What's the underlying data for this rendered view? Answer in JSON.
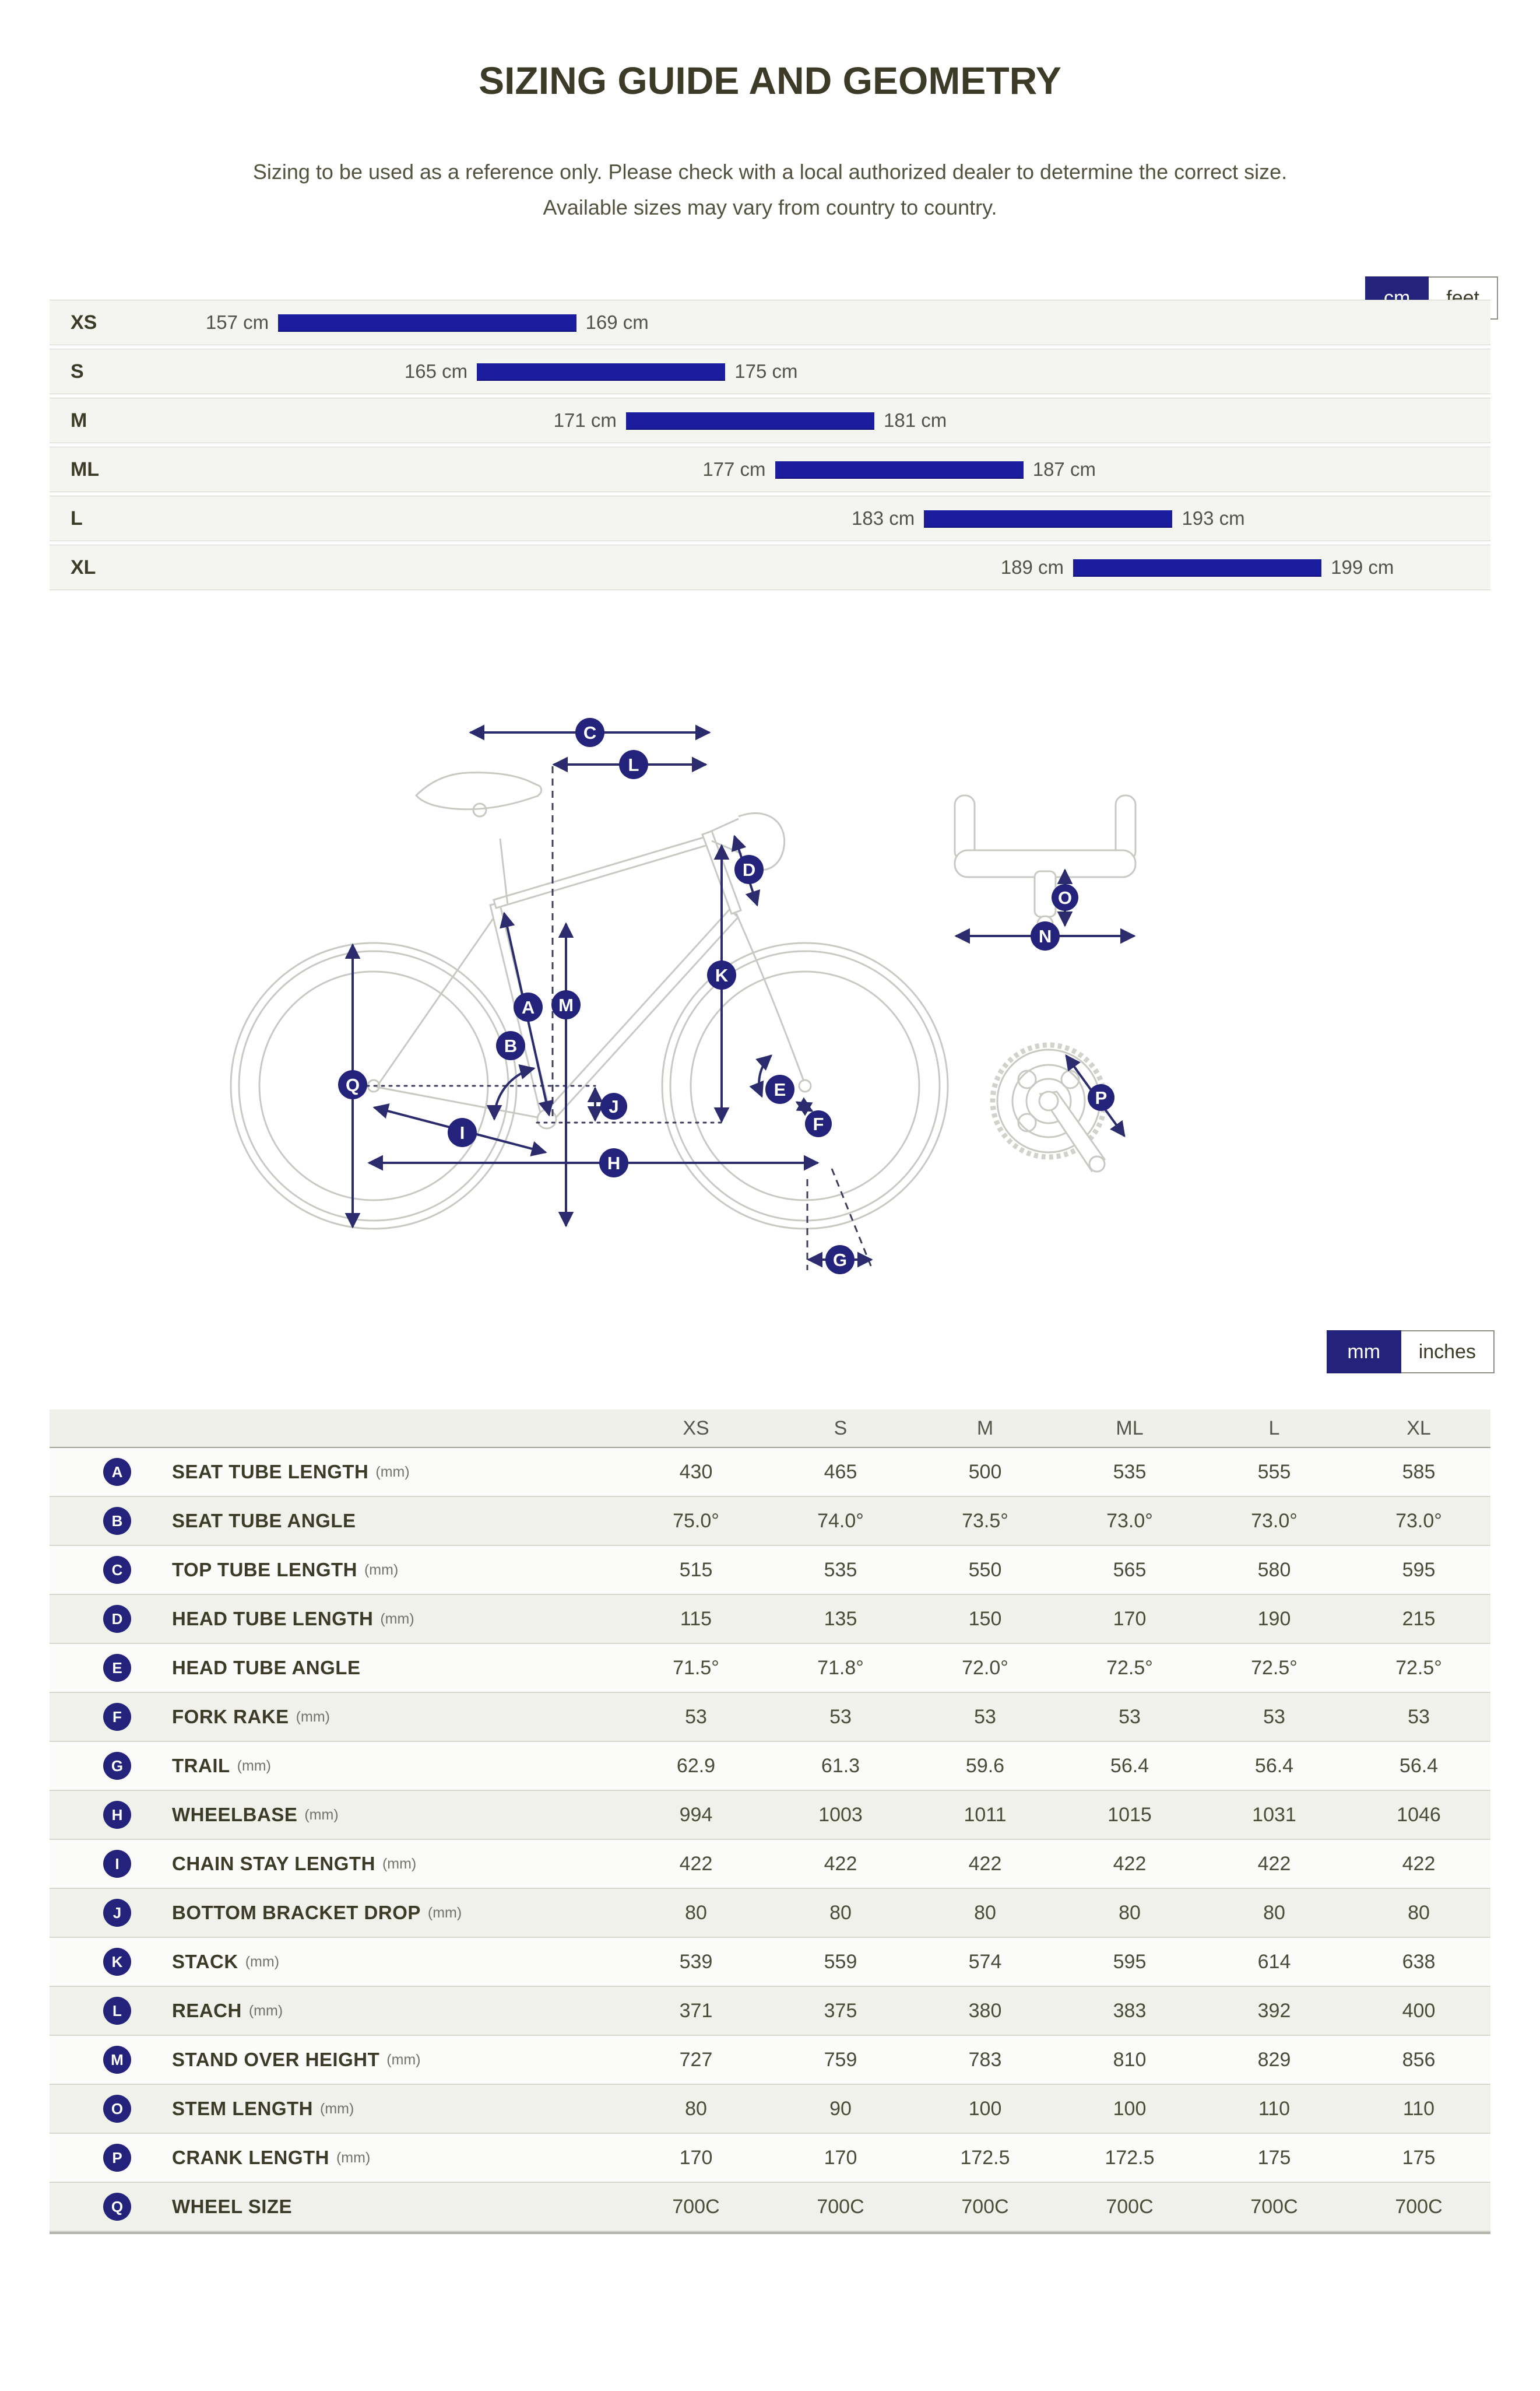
{
  "colors": {
    "accent": "#23237b",
    "bar_blue": "#1c1c9e",
    "title_ink": "#3b3b28"
  },
  "header": {
    "title": "SIZING GUIDE AND GEOMETRY",
    "subtitle_line1": "Sizing to be used as a reference only. Please check with a local authorized dealer to determine the correct size.",
    "subtitle_line2": "Available sizes may vary from country to country."
  },
  "toggles": {
    "height_units": {
      "active": "cm",
      "inactive": "feet"
    },
    "table_units": {
      "active": "mm",
      "inactive": "inches"
    }
  },
  "size_chart": {
    "scale_min_cm": 147.8,
    "scale_max_cm": 205.8,
    "rows": [
      {
        "size": "XS",
        "start": 157,
        "end": 169,
        "start_label": "157 cm",
        "end_label": "169 cm"
      },
      {
        "size": "S",
        "start": 165,
        "end": 175,
        "start_label": "165 cm",
        "end_label": "175 cm"
      },
      {
        "size": "M",
        "start": 171,
        "end": 181,
        "start_label": "171 cm",
        "end_label": "181 cm"
      },
      {
        "size": "ML",
        "start": 177,
        "end": 187,
        "start_label": "177 cm",
        "end_label": "187 cm"
      },
      {
        "size": "L",
        "start": 183,
        "end": 193,
        "start_label": "183 cm",
        "end_label": "193 cm"
      },
      {
        "size": "XL",
        "start": 189,
        "end": 199,
        "start_label": "189 cm",
        "end_label": "199 cm"
      }
    ]
  },
  "diagram": {
    "markers": {
      "A": "A",
      "B": "B",
      "C": "C",
      "D": "D",
      "E": "E",
      "F": "F",
      "G": "G",
      "H": "H",
      "I": "I",
      "J": "J",
      "K": "K",
      "L": "L",
      "M": "M",
      "N": "N",
      "O": "O",
      "P": "P",
      "Q": "Q"
    }
  },
  "geometry_table": {
    "columns": [
      "XS",
      "S",
      "M",
      "ML",
      "L",
      "XL"
    ],
    "rows": [
      {
        "letter": "A",
        "name": "SEAT TUBE LENGTH",
        "unit": "(mm)",
        "values": [
          "430",
          "465",
          "500",
          "535",
          "555",
          "585"
        ]
      },
      {
        "letter": "B",
        "name": "SEAT TUBE ANGLE",
        "unit": "",
        "values": [
          "75.0°",
          "74.0°",
          "73.5°",
          "73.0°",
          "73.0°",
          "73.0°"
        ]
      },
      {
        "letter": "C",
        "name": "TOP TUBE LENGTH",
        "unit": "(mm)",
        "values": [
          "515",
          "535",
          "550",
          "565",
          "580",
          "595"
        ]
      },
      {
        "letter": "D",
        "name": "HEAD TUBE LENGTH",
        "unit": "(mm)",
        "values": [
          "115",
          "135",
          "150",
          "170",
          "190",
          "215"
        ]
      },
      {
        "letter": "E",
        "name": "HEAD TUBE ANGLE",
        "unit": "",
        "values": [
          "71.5°",
          "71.8°",
          "72.0°",
          "72.5°",
          "72.5°",
          "72.5°"
        ]
      },
      {
        "letter": "F",
        "name": "FORK RAKE",
        "unit": "(mm)",
        "values": [
          "53",
          "53",
          "53",
          "53",
          "53",
          "53"
        ]
      },
      {
        "letter": "G",
        "name": "TRAIL",
        "unit": "(mm)",
        "values": [
          "62.9",
          "61.3",
          "59.6",
          "56.4",
          "56.4",
          "56.4"
        ]
      },
      {
        "letter": "H",
        "name": "WHEELBASE",
        "unit": "(mm)",
        "values": [
          "994",
          "1003",
          "1011",
          "1015",
          "1031",
          "1046"
        ]
      },
      {
        "letter": "I",
        "name": "CHAIN STAY LENGTH",
        "unit": "(mm)",
        "values": [
          "422",
          "422",
          "422",
          "422",
          "422",
          "422"
        ]
      },
      {
        "letter": "J",
        "name": "BOTTOM BRACKET DROP",
        "unit": "(mm)",
        "values": [
          "80",
          "80",
          "80",
          "80",
          "80",
          "80"
        ]
      },
      {
        "letter": "K",
        "name": "STACK",
        "unit": "(mm)",
        "values": [
          "539",
          "559",
          "574",
          "595",
          "614",
          "638"
        ]
      },
      {
        "letter": "L",
        "name": "REACH",
        "unit": "(mm)",
        "values": [
          "371",
          "375",
          "380",
          "383",
          "392",
          "400"
        ]
      },
      {
        "letter": "M",
        "name": "STAND OVER HEIGHT",
        "unit": "(mm)",
        "values": [
          "727",
          "759",
          "783",
          "810",
          "829",
          "856"
        ]
      },
      {
        "letter": "O",
        "name": "STEM LENGTH",
        "unit": "(mm)",
        "values": [
          "80",
          "90",
          "100",
          "100",
          "110",
          "110"
        ]
      },
      {
        "letter": "P",
        "name": "CRANK LENGTH",
        "unit": "(mm)",
        "values": [
          "170",
          "170",
          "172.5",
          "172.5",
          "175",
          "175"
        ]
      },
      {
        "letter": "Q",
        "name": "WHEEL SIZE",
        "unit": "",
        "values": [
          "700C",
          "700C",
          "700C",
          "700C",
          "700C",
          "700C"
        ]
      }
    ]
  }
}
